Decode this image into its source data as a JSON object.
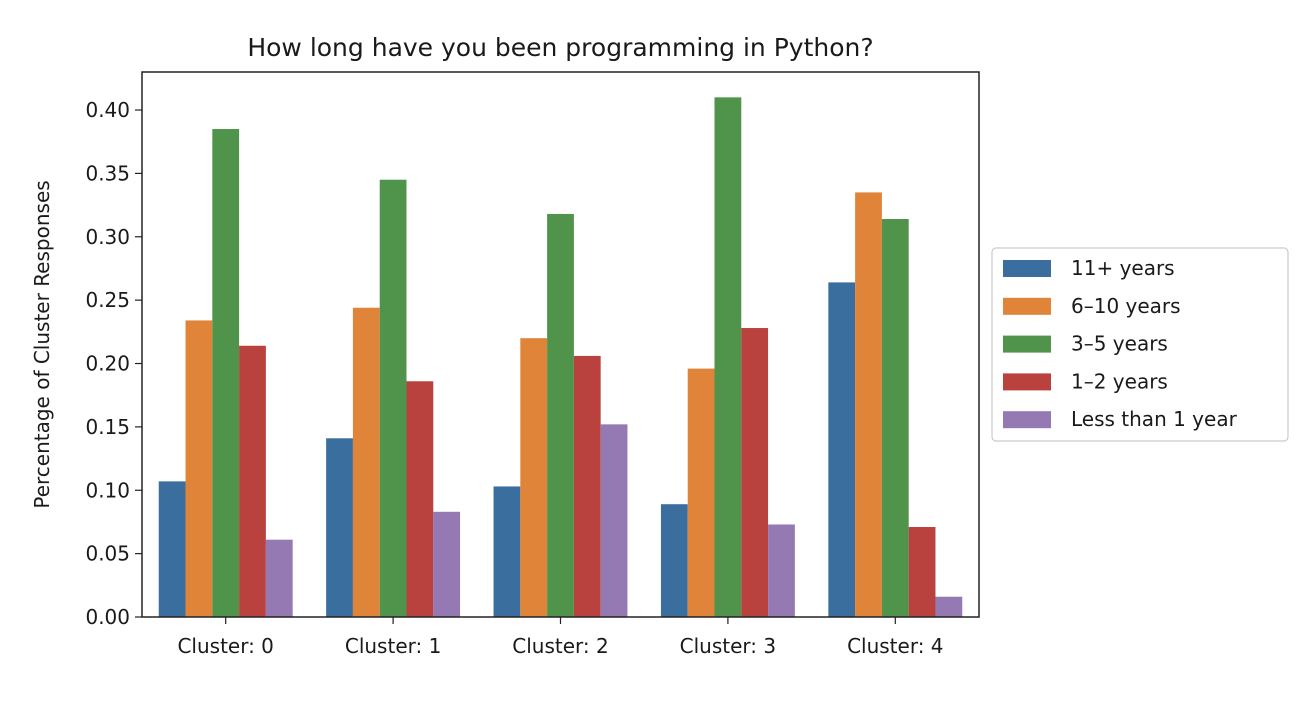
{
  "chart_data": {
    "type": "bar",
    "title": "How long have you been programming in Python?",
    "xlabel": "",
    "ylabel": "Percentage of Cluster Responses",
    "ylim": [
      0,
      0.43
    ],
    "yticks": [
      "0.00",
      "0.05",
      "0.10",
      "0.15",
      "0.20",
      "0.25",
      "0.30",
      "0.35",
      "0.40"
    ],
    "categories": [
      "Cluster: 0",
      "Cluster: 1",
      "Cluster: 2",
      "Cluster: 3",
      "Cluster: 4"
    ],
    "legend_position": "outside-right",
    "grid": false,
    "series": [
      {
        "name": "11+ years",
        "color": "#3a6e9e",
        "values": [
          0.107,
          0.141,
          0.103,
          0.089,
          0.264
        ]
      },
      {
        "name": "6–10 years",
        "color": "#e0843a",
        "values": [
          0.234,
          0.244,
          0.22,
          0.196,
          0.335
        ]
      },
      {
        "name": "3–5 years",
        "color": "#4f944a",
        "values": [
          0.385,
          0.345,
          0.318,
          0.41,
          0.314
        ]
      },
      {
        "name": "1–2 years",
        "color": "#b9423f",
        "values": [
          0.214,
          0.186,
          0.206,
          0.228,
          0.071
        ]
      },
      {
        "name": "Less than 1 year",
        "color": "#9479b2",
        "values": [
          0.061,
          0.083,
          0.152,
          0.073,
          0.016
        ]
      }
    ]
  }
}
